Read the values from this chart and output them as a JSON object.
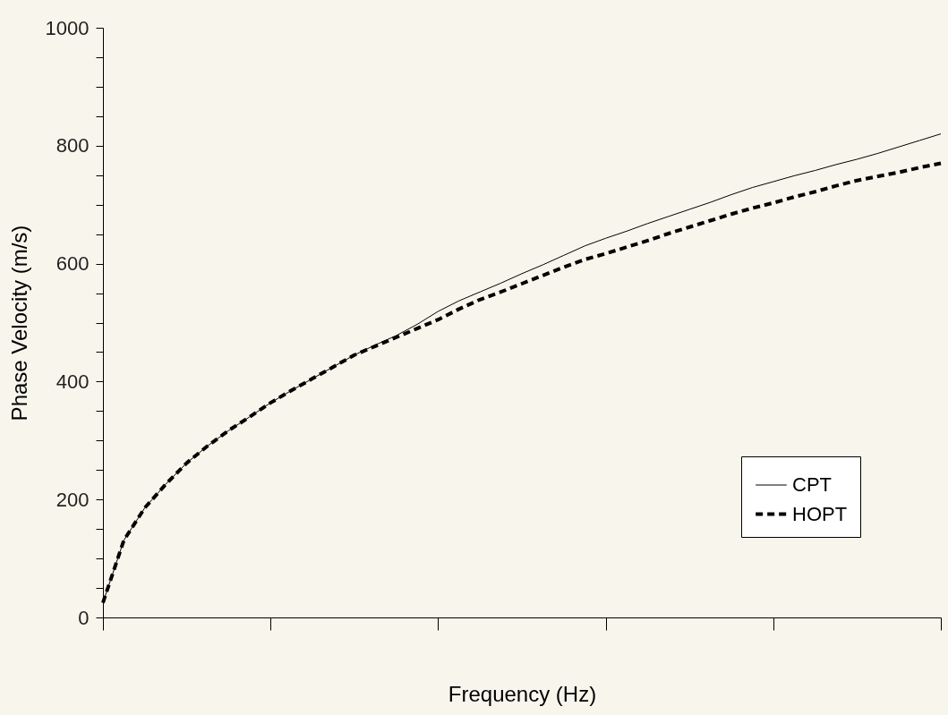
{
  "chart_data": {
    "type": "line",
    "xlabel": "Frequency (Hz)",
    "ylabel": "Phase Velocity (m/s)",
    "categories": [
      null,
      null,
      null,
      null,
      null,
      null,
      null,
      null,
      null,
      null,
      null,
      null,
      null,
      null,
      null,
      null,
      null,
      null,
      null,
      null,
      null,
      null,
      null,
      null,
      null,
      null,
      null,
      null,
      null,
      null,
      null,
      null,
      null,
      null,
      null,
      null,
      null,
      null,
      null,
      null,
      null
    ],
    "series": [
      {
        "name": "CPT",
        "color": "#000000",
        "line_style": "solid",
        "values": [
          25,
          131,
          186,
          226,
          262,
          291,
          317,
          340,
          364,
          385,
          405,
          425,
          445,
          462,
          478,
          497,
          519,
          537,
          552,
          567,
          583,
          598,
          614,
          630,
          643,
          655,
          668,
          680,
          692,
          704,
          717,
          729,
          739,
          749,
          758,
          768,
          777,
          787,
          798,
          809,
          820
        ]
      },
      {
        "name": "HOPT",
        "color": "#000000",
        "line_style": "dashed",
        "values": [
          25,
          131,
          186,
          226,
          262,
          291,
          317,
          340,
          364,
          385,
          405,
          425,
          445,
          460,
          475,
          490,
          505,
          523,
          539,
          552,
          566,
          580,
          594,
          607,
          617,
          628,
          639,
          651,
          662,
          673,
          684,
          694,
          703,
          713,
          722,
          732,
          741,
          748,
          755,
          763,
          770
        ]
      }
    ],
    "ylim": [
      0,
      1000
    ],
    "yticks": [
      0,
      {
        "value": 50,
        "label": null
      },
      {
        "value": 100,
        "label": null
      },
      {
        "value": 150,
        "label": null
      },
      200,
      {
        "value": 250,
        "label": null
      },
      {
        "value": 300,
        "label": null
      },
      {
        "value": 350,
        "label": null
      },
      400,
      {
        "value": 450,
        "label": null
      },
      {
        "value": 500,
        "label": null
      },
      {
        "value": 550,
        "label": null
      },
      600,
      {
        "value": 650,
        "label": null
      },
      {
        "value": 700,
        "label": null
      },
      {
        "value": 750,
        "label": null
      },
      800,
      {
        "value": 850,
        "label": null
      },
      {
        "value": 900,
        "label": null
      },
      {
        "value": 950,
        "label": null
      },
      1000
    ],
    "tick_labels": "y",
    "grid": false,
    "legend": "bottom right"
  }
}
